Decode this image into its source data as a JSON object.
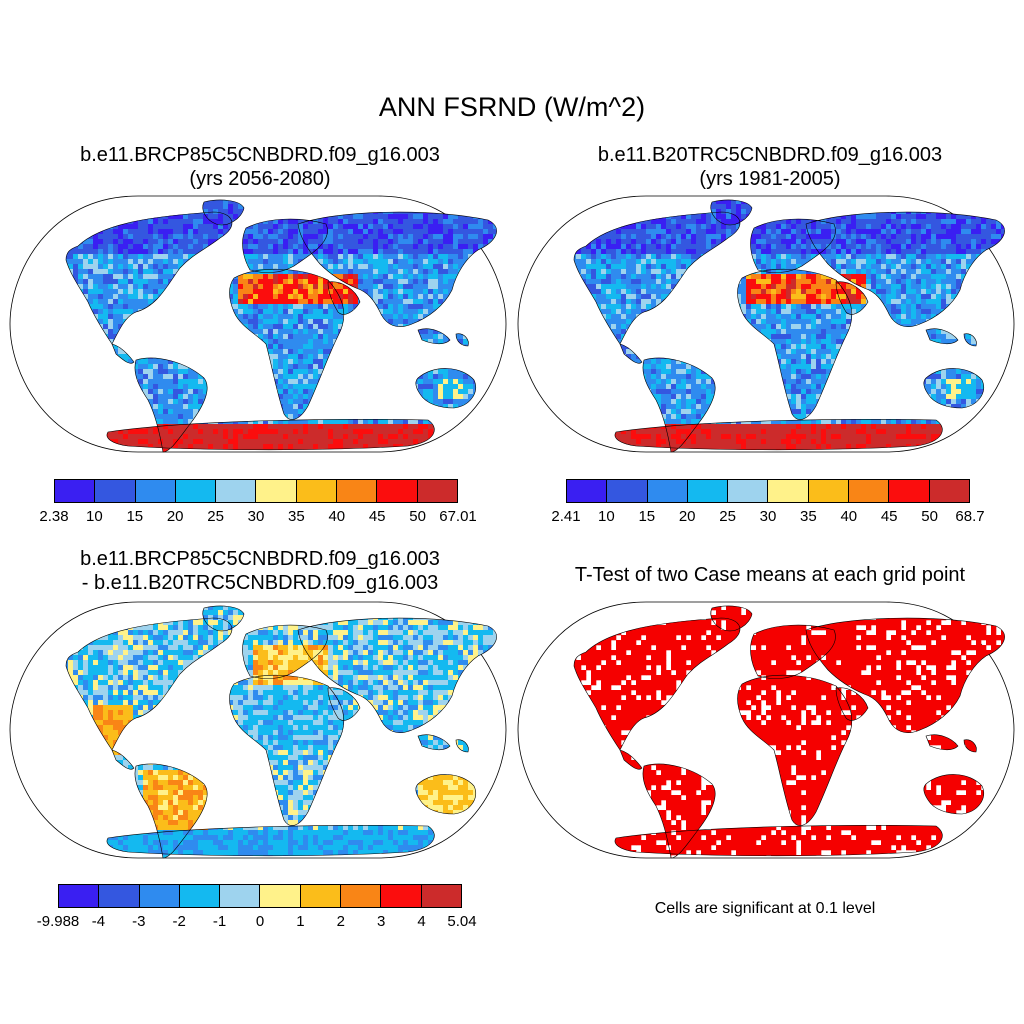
{
  "title": "ANN FSRND (W/m^2)",
  "colors": {
    "scale": [
      "#3a1ff2",
      "#3457e0",
      "#2f8bef",
      "#14b9f0",
      "#9ed3ee",
      "#fff28a",
      "#fbbd1a",
      "#f98516",
      "#fb0d0d",
      "#cc2b2b"
    ],
    "land_base": "#2f8bef",
    "significant": "#f50000",
    "ocean": "#ffffff",
    "outline": "#000000"
  },
  "panels": [
    {
      "id": "case1",
      "title_line1": "b.e11.BRCP85C5CNBDRD.f09_g16.003",
      "title_line2": "(yrs 2056-2080)",
      "colorbar_labels": [
        "2.38",
        "10",
        "15",
        "20",
        "25",
        "30",
        "35",
        "40",
        "45",
        "50",
        "67.01"
      ]
    },
    {
      "id": "case2",
      "title_line1": "b.e11.B20TRC5CNBDRD.f09_g16.003",
      "title_line2": "(yrs 1981-2005)",
      "colorbar_labels": [
        "2.41",
        "10",
        "15",
        "20",
        "25",
        "30",
        "35",
        "40",
        "45",
        "50",
        "68.7"
      ]
    },
    {
      "id": "difference",
      "title_line1": "b.e11.BRCP85C5CNBDRD.f09_g16.003",
      "title_line2": "- b.e11.B20TRC5CNBDRD.f09_g16.003",
      "colorbar_labels": [
        "-9.988",
        "-4",
        "-3",
        "-2",
        "-1",
        "0",
        "1",
        "2",
        "3",
        "4",
        "5.04"
      ]
    },
    {
      "id": "ttest",
      "title_line1": "T-Test of two Case means at each grid point",
      "note": "Cells are significant at 0.1 level"
    }
  ]
}
